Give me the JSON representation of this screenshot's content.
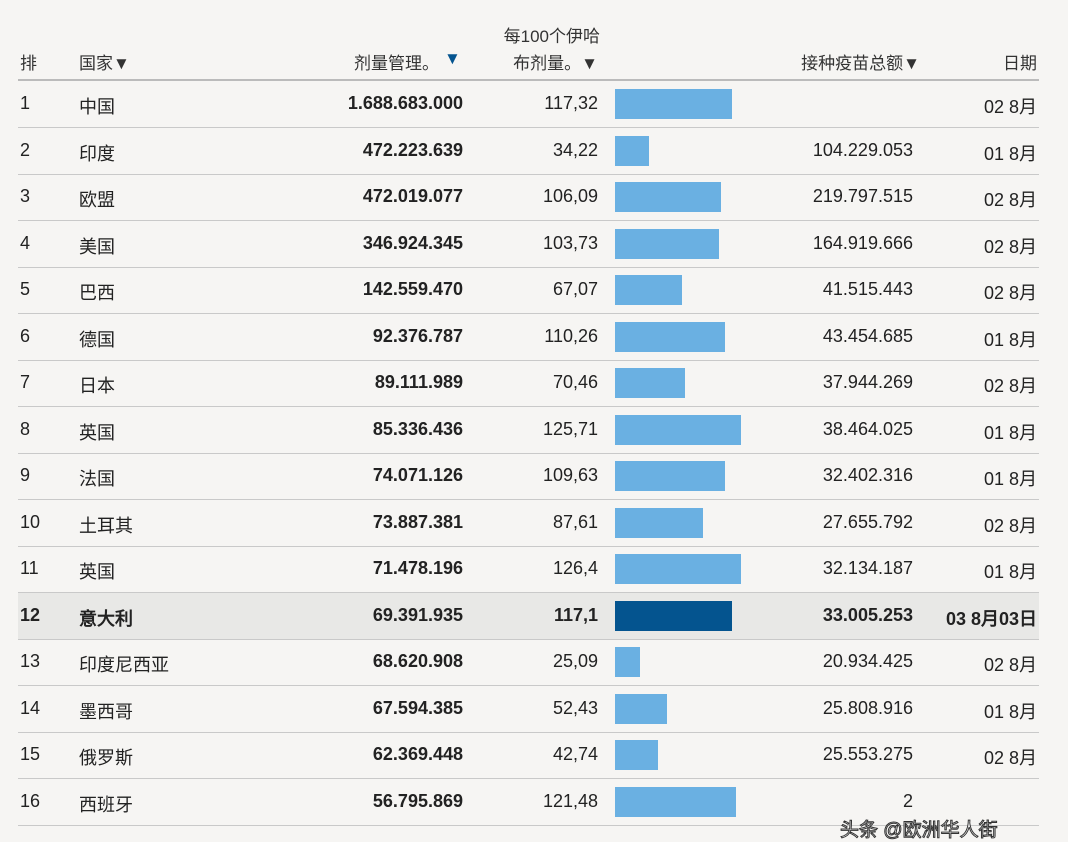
{
  "headers": {
    "rank": "排",
    "country": "国家▼",
    "doses": "剂量管理。",
    "doses_arrow": "▼",
    "per100_line1": "每100个伊哈",
    "per100_line2": "布剂量。▼",
    "total": "接种疫苗总额▼",
    "date": "日期"
  },
  "colors": {
    "bar": "#6ab0e2",
    "highlight_bar": "#04548f",
    "sort_arrow": "#04548f"
  },
  "rows": [
    {
      "rank": "1",
      "country": "中国",
      "doses": "1.688.683.000",
      "per100": "117,32",
      "per100_value": 117.32,
      "total": "",
      "date": "02 8月"
    },
    {
      "rank": "2",
      "country": "印度",
      "doses": "472.223.639",
      "per100": "34,22",
      "per100_value": 34.22,
      "total": "104.229.053",
      "date": "01 8月"
    },
    {
      "rank": "3",
      "country": "欧盟",
      "doses": "472.019.077",
      "per100": "106,09",
      "per100_value": 106.09,
      "total": "219.797.515",
      "date": "02 8月"
    },
    {
      "rank": "4",
      "country": "美国",
      "doses": "346.924.345",
      "per100": "103,73",
      "per100_value": 103.73,
      "total": "164.919.666",
      "date": "02 8月"
    },
    {
      "rank": "5",
      "country": "巴西",
      "doses": "142.559.470",
      "per100": "67,07",
      "per100_value": 67.07,
      "total": "41.515.443",
      "date": "02 8月"
    },
    {
      "rank": "6",
      "country": "德国",
      "doses": "92.376.787",
      "per100": "110,26",
      "per100_value": 110.26,
      "total": "43.454.685",
      "date": "01 8月"
    },
    {
      "rank": "7",
      "country": "日本",
      "doses": "89.111.989",
      "per100": "70,46",
      "per100_value": 70.46,
      "total": "37.944.269",
      "date": "02 8月"
    },
    {
      "rank": "8",
      "country": "英国",
      "doses": "85.336.436",
      "per100": "125,71",
      "per100_value": 125.71,
      "total": "38.464.025",
      "date": "01 8月"
    },
    {
      "rank": "9",
      "country": "法国",
      "doses": "74.071.126",
      "per100": "109,63",
      "per100_value": 109.63,
      "total": "32.402.316",
      "date": "01 8月"
    },
    {
      "rank": "10",
      "country": "土耳其",
      "doses": "73.887.381",
      "per100": "87,61",
      "per100_value": 87.61,
      "total": "27.655.792",
      "date": "02 8月"
    },
    {
      "rank": "11",
      "country": "英国",
      "doses": "71.478.196",
      "per100": "126,4",
      "per100_value": 126.4,
      "total": "32.134.187",
      "date": "01 8月"
    },
    {
      "rank": "12",
      "country": "意大利",
      "doses": "69.391.935",
      "per100": "117,1",
      "per100_value": 117.1,
      "total": "33.005.253",
      "date": "03 8月03日",
      "highlight": true
    },
    {
      "rank": "13",
      "country": "印度尼西亚",
      "doses": "68.620.908",
      "per100": "25,09",
      "per100_value": 25.09,
      "total": "20.934.425",
      "date": "02 8月"
    },
    {
      "rank": "14",
      "country": "墨西哥",
      "doses": "67.594.385",
      "per100": "52,43",
      "per100_value": 52.43,
      "total": "25.808.916",
      "date": "01 8月"
    },
    {
      "rank": "15",
      "country": "俄罗斯",
      "doses": "62.369.448",
      "per100": "42,74",
      "per100_value": 42.74,
      "total": "25.553.275",
      "date": "02 8月"
    },
    {
      "rank": "16",
      "country": "西班牙",
      "doses": "56.795.869",
      "per100": "121,48",
      "per100_value": 121.48,
      "total": "2",
      "date": ""
    }
  ],
  "watermark": "头条 @欧洲华人街"
}
